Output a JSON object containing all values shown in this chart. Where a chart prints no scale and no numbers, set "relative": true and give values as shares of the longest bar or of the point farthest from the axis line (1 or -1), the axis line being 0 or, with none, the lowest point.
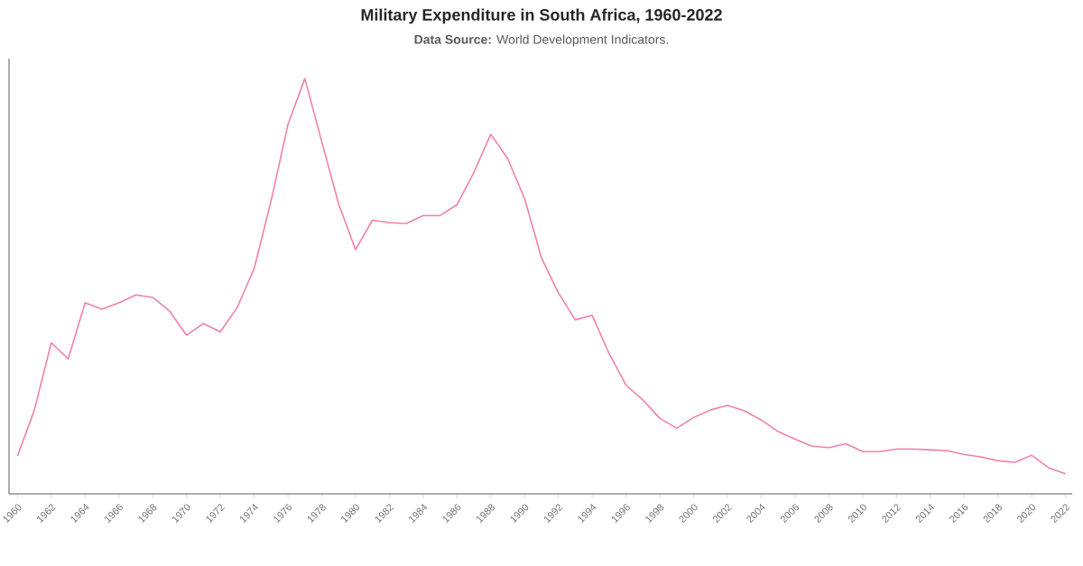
{
  "chart_data": {
    "type": "line",
    "title": "Military Expenditure in South Africa, 1960-2022",
    "subtitle": "**Data Source:** World Development Indicators.",
    "relative": true,
    "x": [
      1960,
      1961,
      1962,
      1963,
      1964,
      1965,
      1966,
      1967,
      1968,
      1969,
      1970,
      1971,
      1972,
      1973,
      1974,
      1975,
      1976,
      1977,
      1978,
      1979,
      1980,
      1981,
      1982,
      1983,
      1984,
      1985,
      1986,
      1987,
      1988,
      1989,
      1990,
      1991,
      1992,
      1993,
      1994,
      1995,
      1996,
      1997,
      1998,
      1999,
      2000,
      2001,
      2002,
      2003,
      2004,
      2005,
      2006,
      2007,
      2008,
      2009,
      2010,
      2011,
      2012,
      2013,
      2014,
      2015,
      2016,
      2017,
      2018,
      2019,
      2020,
      2021,
      2022
    ],
    "series": [
      {
        "color": "#f080b0",
        "values": [
          0.091,
          0.202,
          0.364,
          0.325,
          0.46,
          0.445,
          0.46,
          0.479,
          0.473,
          0.44,
          0.382,
          0.41,
          0.39,
          0.449,
          0.542,
          0.705,
          0.889,
          1.0,
          0.848,
          0.698,
          0.588,
          0.659,
          0.653,
          0.651,
          0.67,
          0.67,
          0.696,
          0.774,
          0.866,
          0.807,
          0.711,
          0.568,
          0.484,
          0.419,
          0.43,
          0.338,
          0.262,
          0.226,
          0.182,
          0.158,
          0.184,
          0.202,
          0.213,
          0.2,
          0.178,
          0.15,
          0.132,
          0.115,
          0.111,
          0.121,
          0.102,
          0.102,
          0.108,
          0.108,
          0.106,
          0.104,
          0.095,
          0.089,
          0.08,
          0.076,
          0.093,
          0.063,
          0.048
        ]
      }
    ],
    "xlim": [
      1959.5,
      2022.4
    ],
    "xticks": [
      1960,
      1962,
      1964,
      1966,
      1968,
      1970,
      1972,
      1974,
      1976,
      1978,
      1980,
      1982,
      1984,
      1986,
      1988,
      1990,
      1992,
      1994,
      1996,
      1998,
      2000,
      2002,
      2004,
      2006,
      2008,
      2010,
      2012,
      2014,
      2016,
      2018,
      2020,
      2022
    ]
  }
}
